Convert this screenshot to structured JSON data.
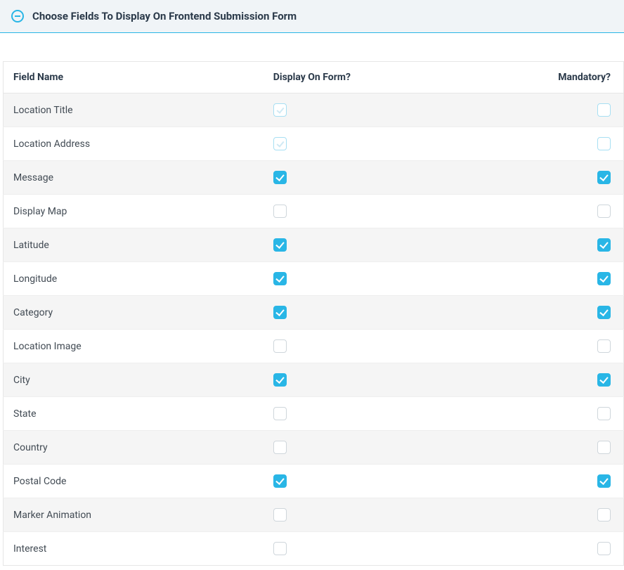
{
  "header": {
    "title": "Choose Fields To Display On Frontend Submission Form"
  },
  "table": {
    "columns": {
      "field": "Field Name",
      "display": "Display On Form?",
      "mandatory": "Mandatory?"
    },
    "rows": [
      {
        "name": "Location Title",
        "display_state": "locked",
        "mandatory_state": "locked-empty"
      },
      {
        "name": "Location Address",
        "display_state": "locked",
        "mandatory_state": "locked-empty"
      },
      {
        "name": "Message",
        "display_state": "checked",
        "mandatory_state": "checked"
      },
      {
        "name": "Display Map",
        "display_state": "unchecked",
        "mandatory_state": "unchecked"
      },
      {
        "name": "Latitude",
        "display_state": "checked",
        "mandatory_state": "checked"
      },
      {
        "name": "Longitude",
        "display_state": "checked",
        "mandatory_state": "checked"
      },
      {
        "name": "Category",
        "display_state": "checked",
        "mandatory_state": "checked"
      },
      {
        "name": "Location Image",
        "display_state": "unchecked",
        "mandatory_state": "unchecked"
      },
      {
        "name": "City",
        "display_state": "checked",
        "mandatory_state": "checked"
      },
      {
        "name": "State",
        "display_state": "unchecked",
        "mandatory_state": "unchecked"
      },
      {
        "name": "Country",
        "display_state": "unchecked",
        "mandatory_state": "unchecked"
      },
      {
        "name": "Postal Code",
        "display_state": "checked",
        "mandatory_state": "checked"
      },
      {
        "name": "Marker Animation",
        "display_state": "unchecked",
        "mandatory_state": "unchecked"
      },
      {
        "name": "Interest",
        "display_state": "unchecked",
        "mandatory_state": "unchecked"
      }
    ]
  },
  "colors": {
    "accent": "#29b6e6",
    "header_bg": "#f0f4f7",
    "row_alt_bg": "#f5f5f5",
    "border": "#e6e6e6",
    "text": "#2b3a4a"
  }
}
